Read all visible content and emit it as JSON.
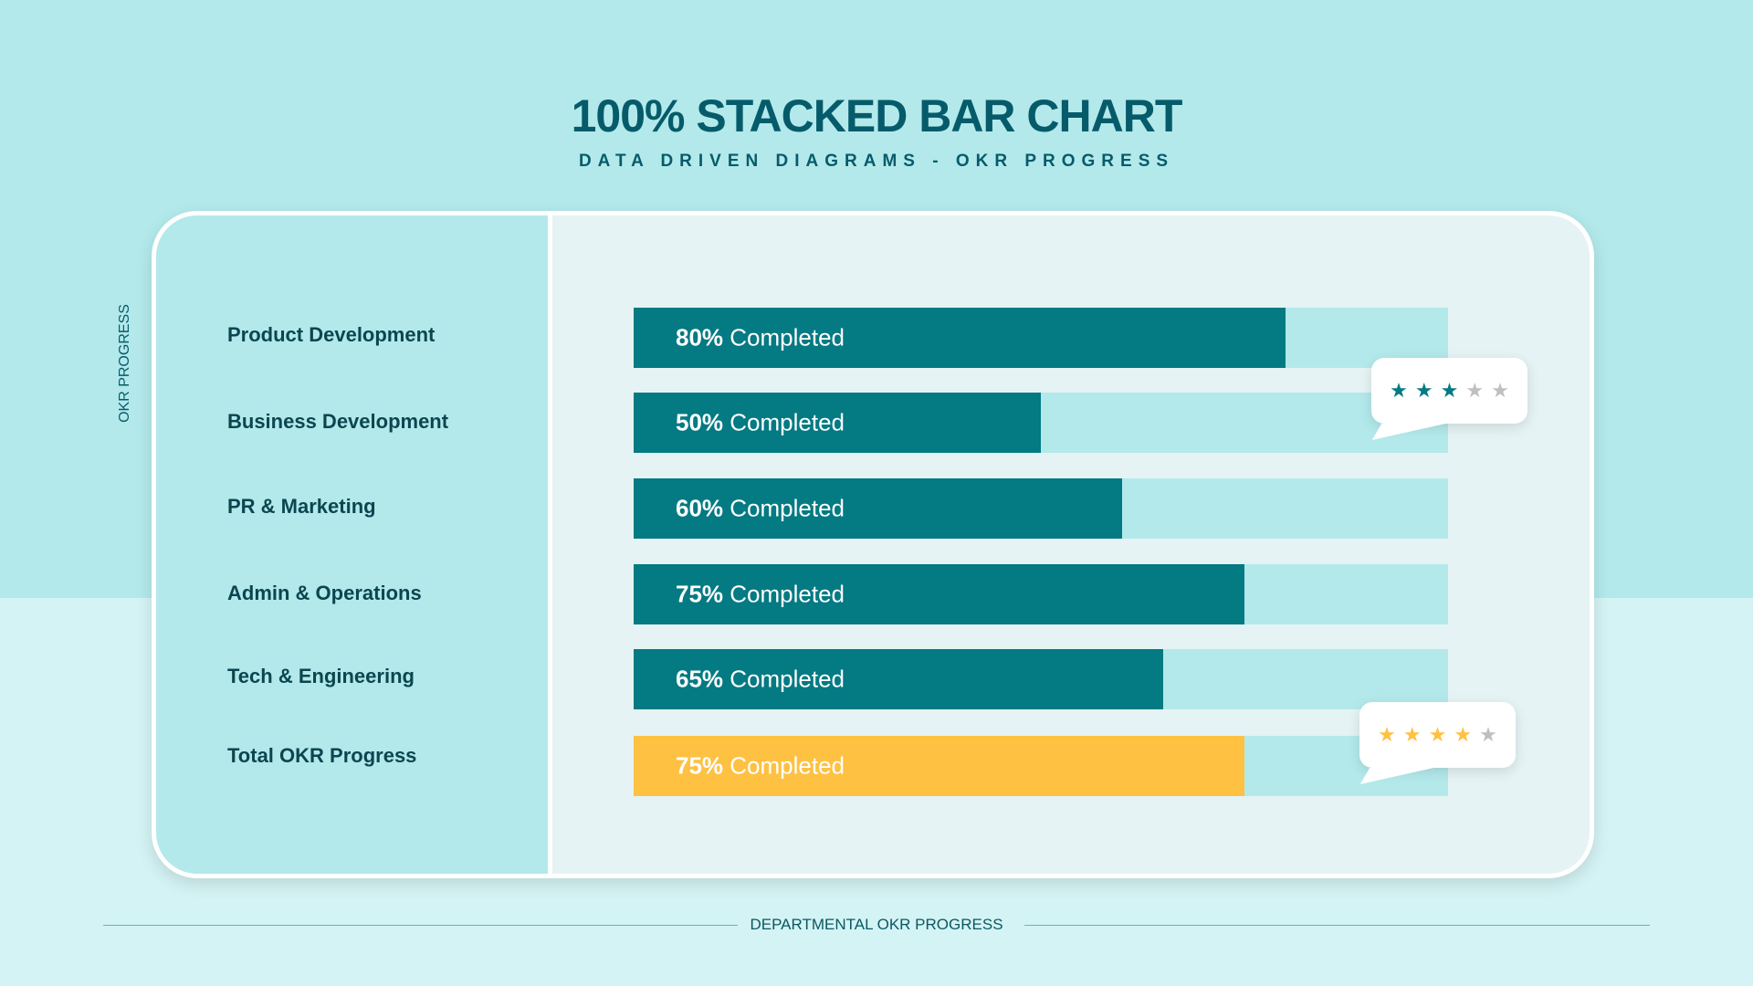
{
  "title": "100% STACKED BAR CHART",
  "subtitle": "DATA DRIVEN DIAGRAMS - OKR PROGRESS",
  "side_label": "OKR PROGRESS",
  "footer": "DEPARTMENTAL OKR PROGRESS",
  "colors": {
    "primary": "#047a83",
    "highlight": "#ffc142",
    "track": "#b3e9eb",
    "title": "#065b6a",
    "star_off": "#bfbfbf"
  },
  "chart_data": {
    "type": "bar",
    "orientation": "horizontal",
    "stacked": "100%",
    "title": "100% STACKED BAR CHART",
    "categories": [
      "Product Development",
      "Business Development",
      "PR & Marketing",
      "Admin & Operations",
      "Tech & Engineering",
      "Total OKR Progress"
    ],
    "values": [
      80,
      50,
      60,
      75,
      65,
      75
    ],
    "labels": [
      "80% Completed",
      "50% Completed",
      "60% Completed",
      "75% Completed",
      "65% Completed",
      "75% Completed"
    ],
    "xlim": [
      0,
      100
    ],
    "grid": false
  },
  "ratings": [
    {
      "stars": 3,
      "max": 5,
      "color": "#047a83"
    },
    {
      "stars": 4,
      "max": 5,
      "color": "#ffc142"
    }
  ]
}
